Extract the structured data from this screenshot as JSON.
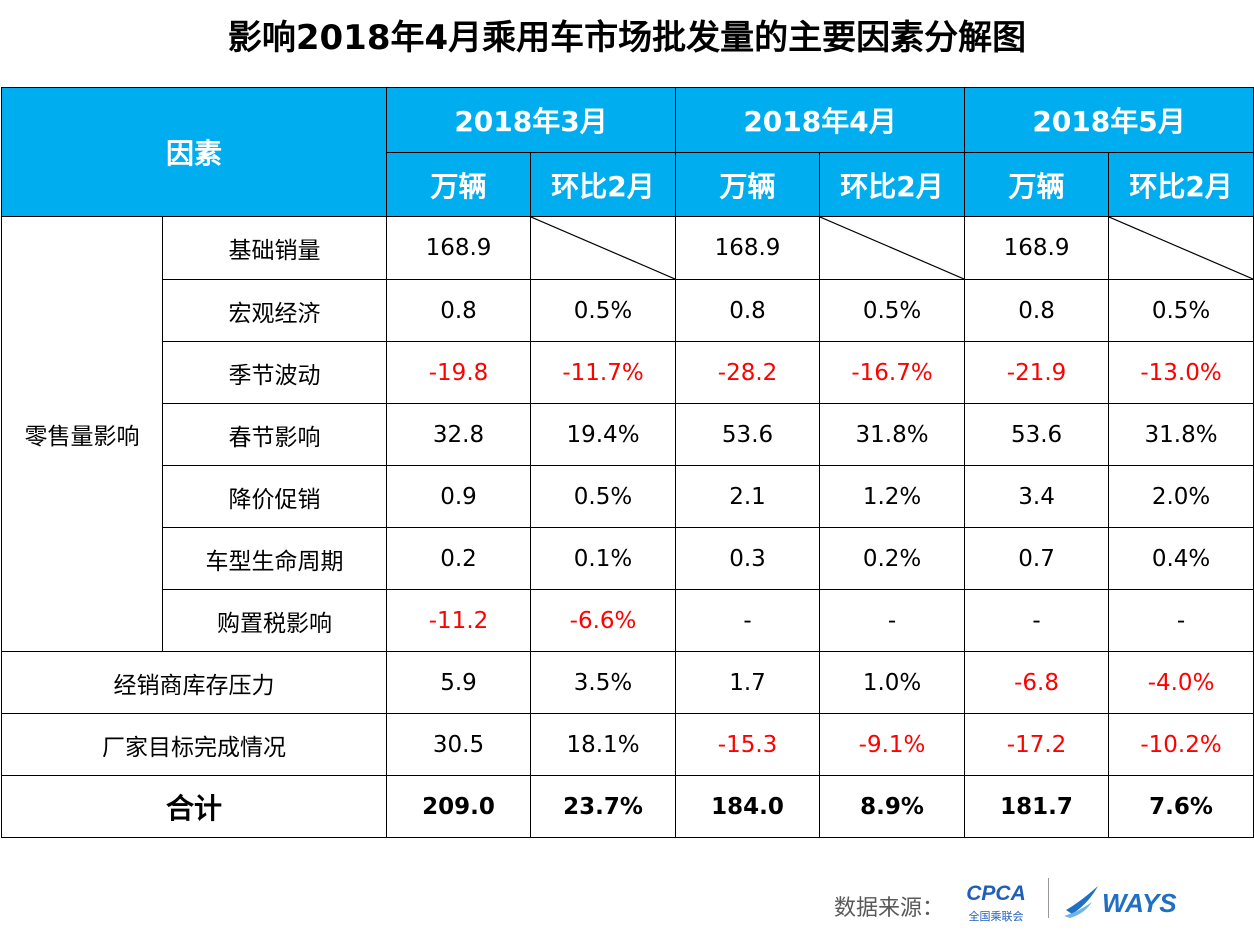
{
  "title": "影响2018年4月乘用车市场批发量的主要因素分解图",
  "header": {
    "factor": "因素",
    "months": [
      "2018年3月",
      "2018年4月",
      "2018年5月"
    ],
    "unit": "万辆",
    "mom": "环比2月"
  },
  "group_label": "零售量影响",
  "rows": [
    {
      "label": "基础销量",
      "v": [
        "168.9",
        "",
        "168.9",
        "",
        "168.9",
        ""
      ]
    },
    {
      "label": "宏观经济",
      "v": [
        "0.8",
        "0.5%",
        "0.8",
        "0.5%",
        "0.8",
        "0.5%"
      ]
    },
    {
      "label": "季节波动",
      "v": [
        "-19.8",
        "-11.7%",
        "-28.2",
        "-16.7%",
        "-21.9",
        "-13.0%"
      ]
    },
    {
      "label": "春节影响",
      "v": [
        "32.8",
        "19.4%",
        "53.6",
        "31.8%",
        "53.6",
        "31.8%"
      ]
    },
    {
      "label": "降价促销",
      "v": [
        "0.9",
        "0.5%",
        "2.1",
        "1.2%",
        "3.4",
        "2.0%"
      ]
    },
    {
      "label": "车型生命周期",
      "v": [
        "0.2",
        "0.1%",
        "0.3",
        "0.2%",
        "0.7",
        "0.4%"
      ]
    },
    {
      "label": "购置税影响",
      "v": [
        "-11.2",
        "-6.6%",
        "-",
        "-",
        "-",
        "-"
      ]
    }
  ],
  "other_rows": [
    {
      "label": "经销商库存压力",
      "v": [
        "5.9",
        "3.5%",
        "1.7",
        "1.0%",
        "-6.8",
        "-4.0%"
      ]
    },
    {
      "label": "厂家目标完成情况",
      "v": [
        "30.5",
        "18.1%",
        "-15.3",
        "-9.1%",
        "-17.2",
        "-10.2%"
      ]
    }
  ],
  "total": {
    "label": "合计",
    "v": [
      "209.0",
      "23.7%",
      "184.0",
      "8.9%",
      "181.7",
      "7.6%"
    ]
  },
  "footer": {
    "source_label": "数据来源：",
    "cpca_logo": "CPCA",
    "cpca_sub": "全国乘联会",
    "ways_logo": "WAYS"
  },
  "colors": {
    "header_bg": "#00aeef",
    "negative": "#ff0000"
  }
}
